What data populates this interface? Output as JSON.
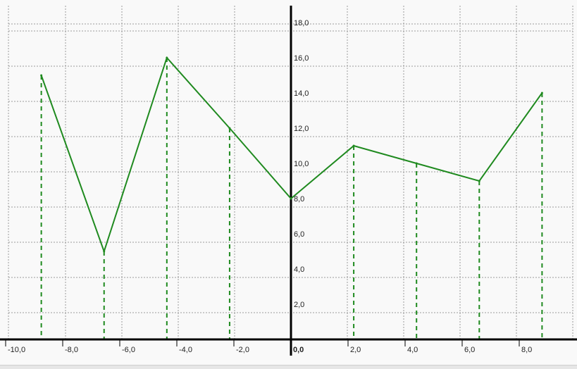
{
  "chart_data": {
    "type": "line",
    "title": "",
    "xlabel": "",
    "ylabel": "",
    "xlim": [
      -10.5,
      9.8
    ],
    "ylim": [
      -0.5,
      19.5
    ],
    "grid": true,
    "legend": "none",
    "line_color": "#1f8a1f",
    "axis_color": "#000000",
    "grid_color": "#9a9a9a",
    "x_ticks": [
      {
        "value": -10,
        "label": "-10,0"
      },
      {
        "value": -8,
        "label": "-8,0"
      },
      {
        "value": -6,
        "label": "-6,0"
      },
      {
        "value": -4,
        "label": "-4,0"
      },
      {
        "value": -2,
        "label": "-2,0"
      },
      {
        "value": 0,
        "label": "0,0"
      },
      {
        "value": 2,
        "label": "2,0"
      },
      {
        "value": 4,
        "label": "4,0"
      },
      {
        "value": 6,
        "label": "6,0"
      },
      {
        "value": 8,
        "label": "8,0"
      }
    ],
    "y_ticks": [
      {
        "value": 2,
        "label": "2,0"
      },
      {
        "value": 4,
        "label": "4,0"
      },
      {
        "value": 6,
        "label": "6,0"
      },
      {
        "value": 8,
        "label": "8,0"
      },
      {
        "value": 10,
        "label": "10,0"
      },
      {
        "value": 12,
        "label": "12,0"
      },
      {
        "value": 14,
        "label": "14,0"
      },
      {
        "value": 16,
        "label": "16,0"
      },
      {
        "value": 18,
        "label": "18,0"
      }
    ],
    "series": [
      {
        "x": [
          -8.75,
          -6.55,
          -4.35,
          -2.15,
          0.0,
          2.2,
          4.4,
          6.6,
          8.8
        ],
        "y": [
          15.0,
          5.0,
          16.0,
          12.0,
          8.0,
          11.0,
          10.0,
          9.0,
          14.0
        ]
      }
    ],
    "drop_lines": true
  }
}
